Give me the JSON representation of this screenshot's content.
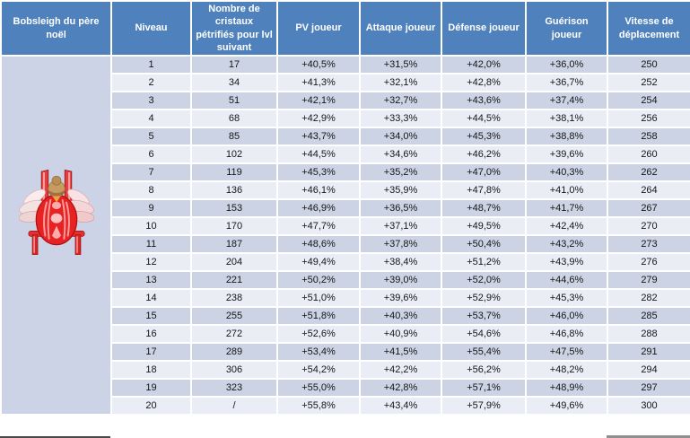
{
  "table": {
    "title": "Bobsleigh du père noël",
    "header": [
      "Bobsleigh du père noël",
      "Niveau",
      "Nombre de cristaux pétrifiés pour lvl suivant",
      "PV joueur",
      "Attaque joueur",
      "Défense joueur",
      "Guérison joueur",
      "Vitesse de déplacement"
    ],
    "rows": [
      [
        "1",
        "17",
        "+40,5%",
        "+31,5%",
        "+42,0%",
        "+36,0%",
        "250"
      ],
      [
        "2",
        "34",
        "+41,3%",
        "+32,1%",
        "+42,8%",
        "+36,7%",
        "252"
      ],
      [
        "3",
        "51",
        "+42,1%",
        "+32,7%",
        "+43,6%",
        "+37,4%",
        "254"
      ],
      [
        "4",
        "68",
        "+42,9%",
        "+33,3%",
        "+44,5%",
        "+38,1%",
        "256"
      ],
      [
        "5",
        "85",
        "+43,7%",
        "+34,0%",
        "+45,3%",
        "+38,8%",
        "258"
      ],
      [
        "6",
        "102",
        "+44,5%",
        "+34,6%",
        "+46,2%",
        "+39,6%",
        "260"
      ],
      [
        "7",
        "119",
        "+45,3%",
        "+35,2%",
        "+47,0%",
        "+40,3%",
        "262"
      ],
      [
        "8",
        "136",
        "+46,1%",
        "+35,9%",
        "+47,8%",
        "+41,0%",
        "264"
      ],
      [
        "9",
        "153",
        "+46,9%",
        "+36,5%",
        "+48,7%",
        "+41,7%",
        "267"
      ],
      [
        "10",
        "170",
        "+47,7%",
        "+37,1%",
        "+49,5%",
        "+42,4%",
        "270"
      ],
      [
        "11",
        "187",
        "+48,6%",
        "+37,8%",
        "+50,4%",
        "+43,2%",
        "273"
      ],
      [
        "12",
        "204",
        "+49,4%",
        "+38,4%",
        "+51,2%",
        "+43,9%",
        "276"
      ],
      [
        "13",
        "221",
        "+50,2%",
        "+39,0%",
        "+52,0%",
        "+44,6%",
        "279"
      ],
      [
        "14",
        "238",
        "+51,0%",
        "+39,6%",
        "+52,9%",
        "+45,3%",
        "282"
      ],
      [
        "15",
        "255",
        "+51,8%",
        "+40,3%",
        "+53,7%",
        "+46,0%",
        "285"
      ],
      [
        "16",
        "272",
        "+52,6%",
        "+40,9%",
        "+54,6%",
        "+46,8%",
        "288"
      ],
      [
        "17",
        "289",
        "+53,4%",
        "+41,5%",
        "+55,4%",
        "+47,5%",
        "291"
      ],
      [
        "18",
        "306",
        "+54,2%",
        "+42,2%",
        "+56,2%",
        "+48,2%",
        "294"
      ],
      [
        "19",
        "323",
        "+55,0%",
        "+42,8%",
        "+57,1%",
        "+48,9%",
        "297"
      ],
      [
        "20",
        "/",
        "+55,8%",
        "+43,4%",
        "+57,9%",
        "+49,6%",
        "300"
      ]
    ]
  },
  "icons": {
    "unit_image": "santa-bobsleigh-sled"
  },
  "colors": {
    "header_bg": "#4F81BD",
    "header_text": "#FFFFFF",
    "row_odd": "#CCD3E4",
    "row_even": "#EAEDF5",
    "image_cell_bg": "#CDD3E6",
    "grid_line": "#FFFFFF",
    "cell_text": "#161616",
    "sled_red": "#E62222"
  }
}
